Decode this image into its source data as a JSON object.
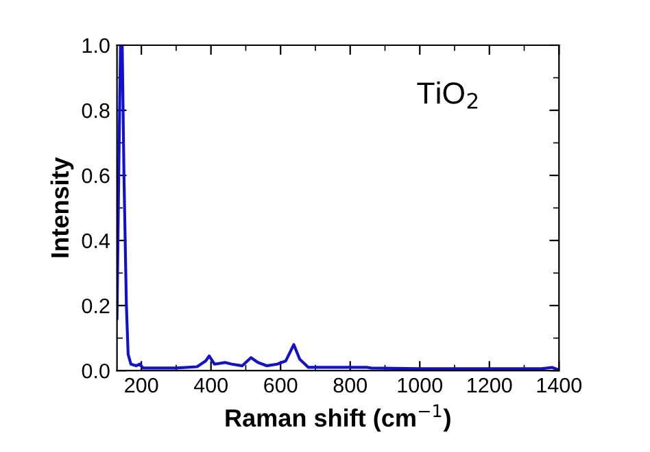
{
  "chart_data": {
    "type": "line",
    "xlabel": "Raman shift (cm$^{−1}$)",
    "ylabel": "Intensity",
    "annotations": [
      "TiO$_{2}$"
    ],
    "xlim": [
      130,
      1400
    ],
    "ylim": [
      0,
      1.0
    ],
    "xticks": [
      200,
      400,
      600,
      800,
      1000,
      1200,
      1400
    ],
    "yticks": [
      {
        "value": 0,
        "label": "0.0"
      },
      {
        "value": 0.2,
        "label": "0.2"
      },
      {
        "value": 0.4,
        "label": "0.4"
      },
      {
        "value": 0.6,
        "label": "0.6"
      },
      {
        "value": 0.8,
        "label": "0.8"
      },
      {
        "value": 1.0,
        "label": "1.0"
      }
    ],
    "grid": false,
    "marker": "none",
    "line_style": "solid",
    "series": [
      {
        "color": "#1010d0",
        "x": [
          130,
          135,
          140,
          145,
          150,
          157,
          162,
          170,
          185,
          195,
          205,
          300,
          360,
          385,
          395,
          410,
          440,
          460,
          490,
          515,
          535,
          560,
          590,
          615,
          638,
          655,
          680,
          750,
          850,
          860,
          1000,
          1200,
          1350,
          1380,
          1395
        ],
        "values": [
          0.16,
          0.6,
          1.0,
          1.0,
          0.6,
          0.2,
          0.05,
          0.02,
          0.015,
          0.02,
          0.008,
          0.008,
          0.012,
          0.03,
          0.045,
          0.02,
          0.025,
          0.02,
          0.015,
          0.04,
          0.025,
          0.015,
          0.02,
          0.03,
          0.08,
          0.035,
          0.01,
          0.01,
          0.01,
          0.008,
          0.006,
          0.006,
          0.006,
          0.01,
          0.004
        ]
      }
    ]
  }
}
